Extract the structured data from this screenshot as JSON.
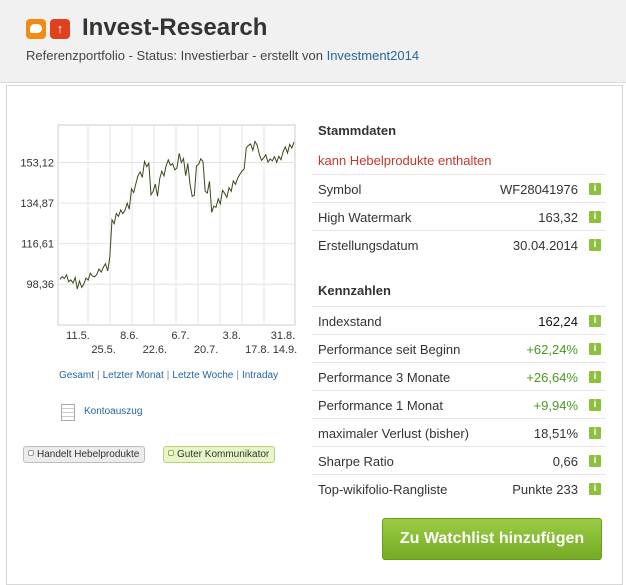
{
  "header": {
    "title": "Invest-Research",
    "subtitle_prefix": "Referenzportfolio - Status: Investierbar - erstellt von ",
    "author": "Investment2014",
    "icons": [
      "comment-icon",
      "trend-icon"
    ]
  },
  "chart_data": {
    "type": "line",
    "y_ticks": [
      "153,12",
      "134,87",
      "116,61",
      "98,36"
    ],
    "y_tick_values": [
      153.12,
      134.87,
      116.61,
      98.36
    ],
    "x_ticks_top": [
      "11.5.",
      "8.6.",
      "6.7.",
      "3.8.",
      "31.8."
    ],
    "x_ticks_bottom": [
      "25.5.",
      "22.6.",
      "20.7.",
      "17.8.",
      "14.9."
    ],
    "ylim": [
      80,
      170
    ],
    "grid": true,
    "series": [
      {
        "values": [
          100.5,
          101.8,
          100.9,
          102.6,
          99.5,
          100.3,
          98.9,
          101.4,
          96.2,
          99.8,
          96.9,
          98.4,
          101.1,
          100.2,
          103.3,
          102.0,
          101.7,
          102.8,
          105.2,
          103.8,
          105.9,
          107.6,
          104.3,
          110.5,
          127.4,
          125.6,
          130.2,
          128.9,
          131.8,
          130.1,
          131.6,
          134.8,
          132.1,
          141.3,
          139.6,
          143.5,
          147.2,
          148.9,
          146.4,
          153.6,
          151.2,
          152.8,
          138.6,
          140.2,
          143.4,
          137.9,
          145.8,
          149.2,
          147.1,
          151.8,
          154.3,
          151.9,
          152.6,
          149.8,
          150.7,
          157.2,
          153.1,
          154.9,
          147.2,
          152.7,
          143.5,
          137.9,
          138.3,
          151.6,
          152.4,
          154.8,
          153.5,
          140.2,
          139.4,
          144.6,
          130.7,
          133.5,
          132.9,
          136.8,
          134.5,
          140.6,
          139.2,
          137.4,
          141.8,
          140.1,
          144.9,
          143.3,
          146.1,
          147.8,
          149.3,
          150.2,
          159.8,
          160.8,
          161.5,
          158.6,
          162.6,
          160.9,
          156.8,
          154.1,
          155.2,
          156.6,
          153.3,
          154.7,
          153.9,
          155.8,
          153.2,
          155.9,
          154.4,
          158.1,
          160.2,
          157.4,
          161.3,
          159.6,
          162.24
        ]
      }
    ]
  },
  "chart_links": {
    "gesamt": "Gesamt",
    "monat": "Letzter Monat",
    "woche": "Letzte Woche",
    "intraday": "Intraday",
    "separator": "|"
  },
  "konto": {
    "label": "Kontoauszug",
    "icon": "document-icon"
  },
  "badges": {
    "hebel": "Handelt Hebelprodukte",
    "kommunikator": "Guter Kommunikator"
  },
  "stammdaten": {
    "title": "Stammdaten",
    "hebel_note": "kann Hebelprodukte enthalten",
    "rows": [
      {
        "label": "Symbol",
        "value": "WF28041976"
      },
      {
        "label": "High Watermark",
        "value": "163,32"
      },
      {
        "label": "Erstellungsdatum",
        "value": "30.04.2014"
      }
    ]
  },
  "kennzahlen": {
    "title": "Kennzahlen",
    "rows": [
      {
        "label": "Indexstand",
        "value": "162,24"
      },
      {
        "label": "Performance seit Beginn",
        "value": "+62,24%"
      },
      {
        "label": "Performance 3 Monate",
        "value": "+26,64%"
      },
      {
        "label": "Performance 1 Monat",
        "value": "+9,94%"
      },
      {
        "label": "maximaler Verlust (bisher)",
        "value": "18,51%"
      },
      {
        "label": "Sharpe Ratio",
        "value": "0,66"
      },
      {
        "label": "Top-wikifolio-Rangliste",
        "value": "Punkte 233"
      }
    ]
  },
  "info_icon_glyph": "i",
  "watchlist_button": "Zu Watchlist hinzufügen",
  "colors": {
    "positive": "#4a9a1e",
    "warning": "#c0392b",
    "link": "#23679f",
    "button": "#86bd33",
    "line": "#3a4a1a"
  }
}
